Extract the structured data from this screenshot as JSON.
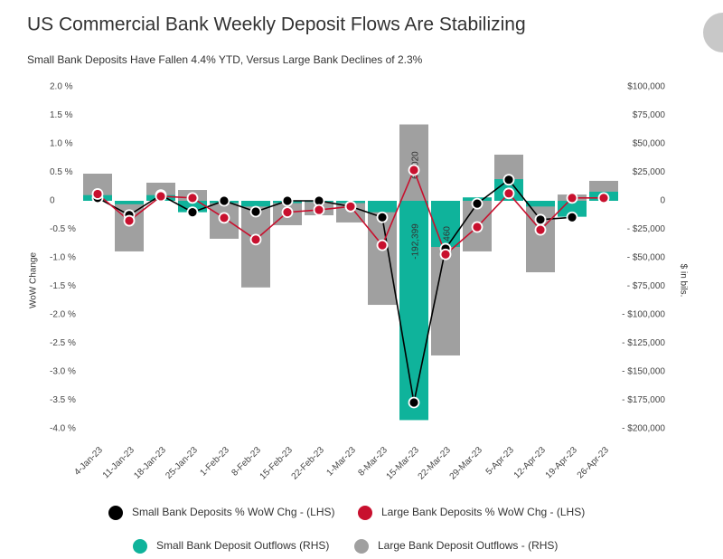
{
  "chart_data": {
    "type": "bar-line",
    "title": "US Commercial Bank Weekly Deposit Flows Are Stabilizing",
    "subtitle": "Small Bank Deposits Have Fallen 4.4% YTD, Versus Large Bank Declines of 2.3%",
    "y_label": "WoW Change",
    "y2_label": "$ in bils.",
    "categories": [
      "4-Jan-23",
      "11-Jan-23",
      "18-Jan-23",
      "25-Jan-23",
      "1-Feb-23",
      "8-Feb-23",
      "15-Feb-23",
      "22-Feb-23",
      "1-Mar-23",
      "8-Mar-23",
      "15-Mar-23",
      "22-Mar-23",
      "29-Mar-23",
      "5-Apr-23",
      "12-Apr-23",
      "19-Apr-23",
      "26-Apr-23"
    ],
    "ylim": [
      -4.0,
      2.0
    ],
    "yticks": [
      {
        "value": 2.0,
        "label": "2.0 %"
      },
      {
        "value": 1.5,
        "label": "1.5 %"
      },
      {
        "value": 1.0,
        "label": "1.0 %"
      },
      {
        "value": 0.5,
        "label": "0.5 %"
      },
      0,
      {
        "value": -0.5,
        "label": "-0.5 %"
      },
      {
        "value": -1.0,
        "label": "-1.0 %"
      },
      {
        "value": -1.5,
        "label": "-1.5 %"
      },
      {
        "value": -2.0,
        "label": "-2.0 %"
      },
      {
        "value": -2.5,
        "label": "-2.5 %"
      },
      {
        "value": -3.0,
        "label": "-3.0 %"
      },
      {
        "value": -3.5,
        "label": "-3.5 %"
      },
      {
        "value": -4.0,
        "label": "-4.0 %"
      }
    ],
    "y2lim": [
      -200000,
      100000
    ],
    "y2ticks": [
      {
        "value": 100000,
        "label": "$100,000"
      },
      {
        "value": 75000,
        "label": "$75,000"
      },
      {
        "value": 50000,
        "label": "$50,000"
      },
      {
        "value": 25000,
        "label": "$25,000"
      },
      0,
      {
        "value": -25000,
        "label": "- $25,000"
      },
      {
        "value": -50000,
        "label": "- $50,000"
      },
      {
        "value": -75000,
        "label": "- $75,000"
      },
      {
        "value": -100000,
        "label": "- $100,000"
      },
      {
        "value": -125000,
        "label": "- $125,000"
      },
      {
        "value": -150000,
        "label": "- $150,000"
      },
      {
        "value": -175000,
        "label": "- $175,000"
      },
      {
        "value": -200000,
        "label": "- $200,000"
      }
    ],
    "series": [
      {
        "name": "Small Bank Deposits % WoW Chg - (LHS)",
        "kind": "line",
        "color": "#000000",
        "values": [
          0.05,
          -0.25,
          0.1,
          -0.2,
          0.0,
          -0.19,
          0.0,
          0.0,
          -0.1,
          -0.29,
          -3.54,
          -0.84,
          -0.05,
          0.37,
          -0.33,
          -0.29,
          null
        ]
      },
      {
        "name": "Large Bank Deposits % WoW Chg - (LHS)",
        "kind": "line",
        "color": "#c8102e",
        "values": [
          0.12,
          -0.35,
          0.08,
          0.05,
          -0.3,
          -0.68,
          -0.2,
          -0.16,
          -0.1,
          -0.78,
          0.54,
          -0.94,
          -0.46,
          0.13,
          -0.51,
          0.05,
          0.05
        ]
      },
      {
        "name": "Small Bank Deposit Outflows (RHS)",
        "kind": "bar",
        "axis": "y2",
        "color": "#0fb39b",
        "values": [
          5000,
          -3000,
          5000,
          -10000,
          -2000,
          -5000,
          -2000,
          -1000,
          -2000,
          -10000,
          -192399,
          -40460,
          3000,
          19000,
          -5000,
          -14000,
          8000
        ],
        "value_labels": [
          null,
          null,
          null,
          null,
          null,
          null,
          null,
          null,
          null,
          null,
          "-192,399",
          "-40,460",
          null,
          null,
          null,
          null,
          null
        ]
      },
      {
        "name": "Large Bank Deposit Outflows - (RHS)",
        "kind": "bar",
        "axis": "y2",
        "color": "#a0a0a0",
        "values": [
          23800,
          -44400,
          15900,
          9500,
          -33300,
          -76000,
          -21400,
          -12700,
          -19000,
          -91300,
          67020,
          -135700,
          -44400,
          40500,
          -62700,
          5500,
          17500
        ],
        "value_labels": [
          null,
          null,
          null,
          null,
          null,
          null,
          null,
          null,
          null,
          null,
          "67,020",
          null,
          null,
          null,
          null,
          null,
          null
        ]
      }
    ]
  }
}
